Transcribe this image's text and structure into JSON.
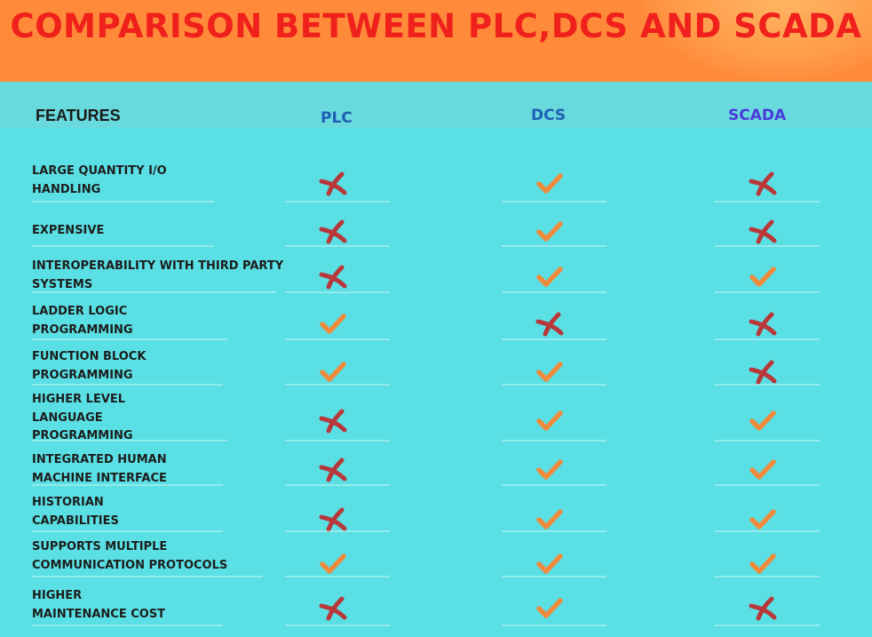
{
  "title": "COMPARISON BETWEEN PLC,DCS AND SCADA",
  "headers": {
    "features": "FEATURES",
    "plc": "PLC",
    "dcs": "DCS",
    "scada": "SCADA"
  },
  "colors": {
    "banner": "#ff8a3a",
    "title": "#f0201c",
    "background": "#5ae0e4",
    "check": "#f08a3c",
    "cross": "#b8383a"
  },
  "rows": [
    {
      "label": "LARGE QUANTITY I/O\nHANDLING",
      "plc": "cross",
      "dcs": "check",
      "scada": "cross"
    },
    {
      "label": "EXPENSIVE",
      "plc": "cross",
      "dcs": "check",
      "scada": "cross"
    },
    {
      "label": "INTEROPERABILITY WITH THIRD PARTY\nSYSTEMS",
      "plc": "cross",
      "dcs": "check",
      "scada": "check"
    },
    {
      "label": "LADDER LOGIC\nPROGRAMMING",
      "plc": "check",
      "dcs": "cross",
      "scada": "cross"
    },
    {
      "label": "FUNCTION BLOCK\nPROGRAMMING",
      "plc": "check",
      "dcs": "check",
      "scada": "cross"
    },
    {
      "label": "HIGHER LEVEL\nLANGUAGE\nPROGRAMMING",
      "plc": "cross",
      "dcs": "check",
      "scada": "check"
    },
    {
      "label": "INTEGRATED HUMAN\nMACHINE INTERFACE",
      "plc": "cross",
      "dcs": "check",
      "scada": "check"
    },
    {
      "label": "HISTORIAN\nCAPABILITIES",
      "plc": "cross",
      "dcs": "check",
      "scada": "check"
    },
    {
      "label": "SUPPORTS MULTIPLE\nCOMMUNICATION PROTOCOLS",
      "plc": "check",
      "dcs": "check",
      "scada": "check"
    },
    {
      "label": "HIGHER\nMAINTENANCE COST",
      "plc": "cross",
      "dcs": "check",
      "scada": "cross"
    }
  ]
}
